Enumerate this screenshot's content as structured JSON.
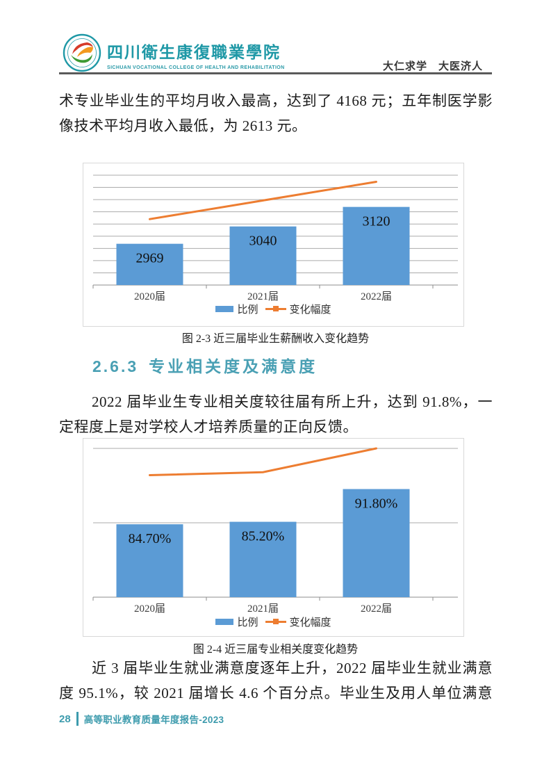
{
  "header": {
    "college_name_zh": "四川衛生康復職業學院",
    "college_name_en": "SICHUAN VOCATIONAL COLLEGE OF HEALTH AND REHABILITATION",
    "motto": "大仁求学　大医济人",
    "logo_icon": "college-seal-icon"
  },
  "body": {
    "p1": {
      "lines": [
        "术专业毕业生的平均月收入最高，达到了 4168 元；五年制医学影",
        "像技术平均月收入最低，为 2613 元。"
      ]
    },
    "p2": {
      "lines": [
        "2022 届毕业生专业相关度较往届有所上升，达到 91.8%，一",
        "定程度上是对学校人才培养质量的正向反馈。"
      ]
    },
    "p3": {
      "lines": [
        "近 3 届毕业生就业满意度逐年上升，2022 届毕业生就业满意",
        "度 95.1%，较 2021 届增长 4.6 个百分点。毕业生及用人单位满意"
      ]
    }
  },
  "section": {
    "number": "2.6.3",
    "title": "专业相关度及满意度"
  },
  "chart_data": [
    {
      "type": "bar",
      "title": "图 2-3 近三届毕业生薪酬收入变化趋势",
      "categories": [
        "2020届",
        "2021届",
        "2022届"
      ],
      "series": [
        {
          "name": "比例",
          "kind": "bar",
          "values": [
            2969,
            3040,
            3120
          ],
          "data_labels": [
            "2969",
            "3040",
            "3120"
          ],
          "color": "#5B9BD5"
        },
        {
          "name": "变化幅度",
          "kind": "line",
          "values_labeled": false,
          "trend_fraction": [
            0.6,
            0.77,
            0.94
          ],
          "color": "#ED7D31"
        }
      ],
      "xlabel": "",
      "ylabel": "",
      "ylim": [
        2800,
        3250
      ],
      "y_major": 50,
      "grid": true,
      "legend_position": "bottom"
    },
    {
      "type": "bar",
      "title": "图 2-4 近三届专业相关度变化趋势",
      "categories": [
        "2020届",
        "2021届",
        "2022届"
      ],
      "series": [
        {
          "name": "比例",
          "kind": "bar",
          "values": [
            84.7,
            85.2,
            91.8
          ],
          "data_labels": [
            "84.70%",
            "85.20%",
            "91.80%"
          ],
          "color": "#5B9BD5"
        },
        {
          "name": "变化幅度",
          "kind": "line",
          "values_labeled": false,
          "trend_fraction": [
            0.82,
            0.84,
            1.0
          ],
          "color": "#ED7D31"
        }
      ],
      "xlabel": "",
      "ylabel": "",
      "ylim": [
        70,
        100
      ],
      "y_major": 15,
      "grid": true,
      "legend_position": "bottom"
    }
  ],
  "footer": {
    "page_number": "28",
    "report_title": "高等职业教育质量年度报告-2023"
  },
  "colors": {
    "bar_blue": "#5B9BD5",
    "line_orange": "#ED7D31",
    "heading_teal": "#4aa0b4",
    "footer_teal": "#3d9bad",
    "seal_teal": "#1e98a6",
    "grid_gray": "#ababab"
  }
}
